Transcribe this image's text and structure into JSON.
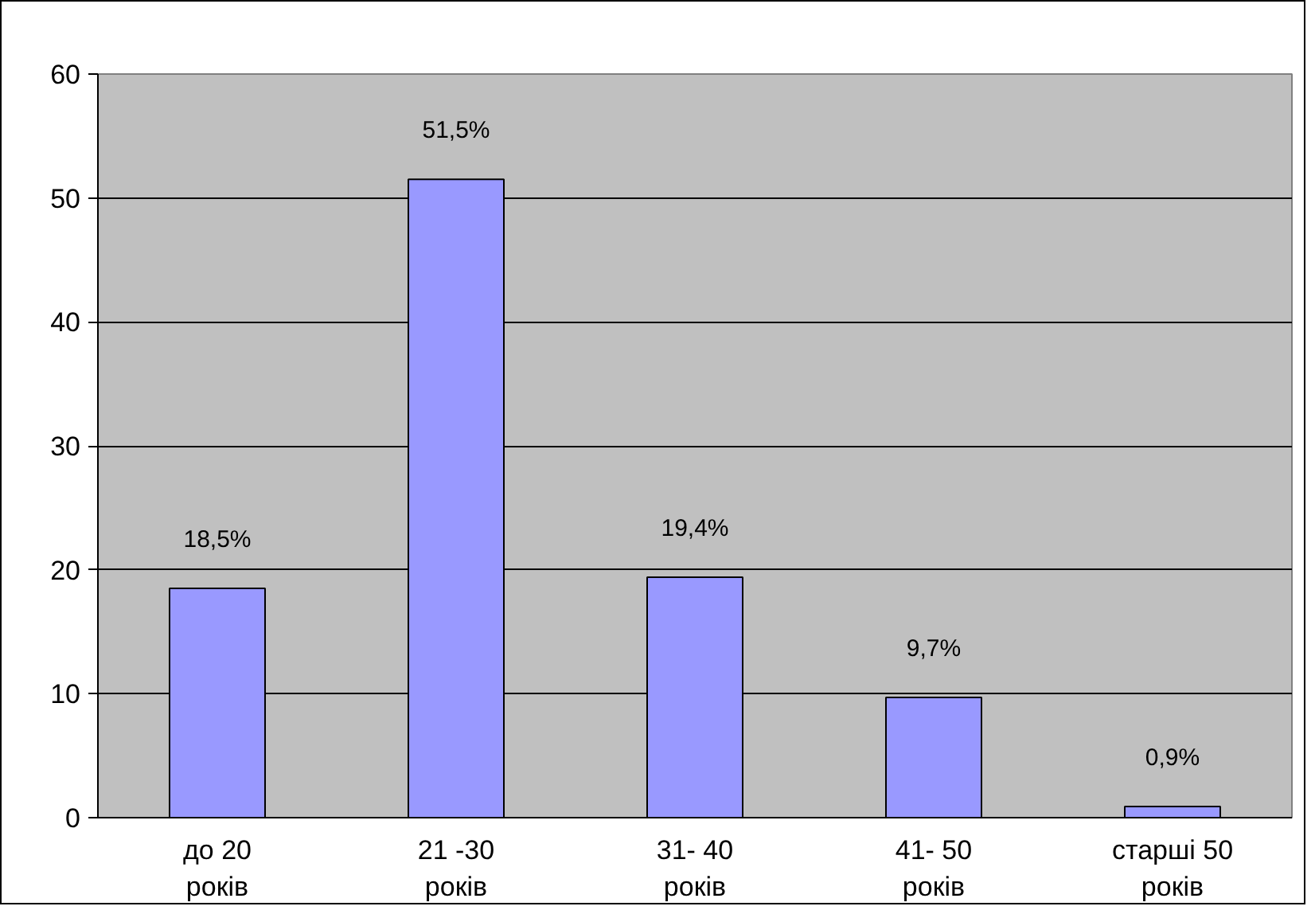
{
  "chart_data": {
    "type": "bar",
    "categories": [
      "до 20\nроків",
      "21 -30\nроків",
      "31- 40\nроків",
      "41- 50\nроків",
      "старші 50\nроків"
    ],
    "values": [
      18.5,
      51.5,
      19.4,
      9.7,
      0.9
    ],
    "value_labels": [
      "18,5%",
      "51,5%",
      "19,4%",
      "9,7%",
      "0,9%"
    ],
    "color": "#9999ff",
    "ylim": [
      0,
      60
    ],
    "yticks": [
      0,
      10,
      20,
      30,
      40,
      50,
      60
    ],
    "grid": "y"
  }
}
